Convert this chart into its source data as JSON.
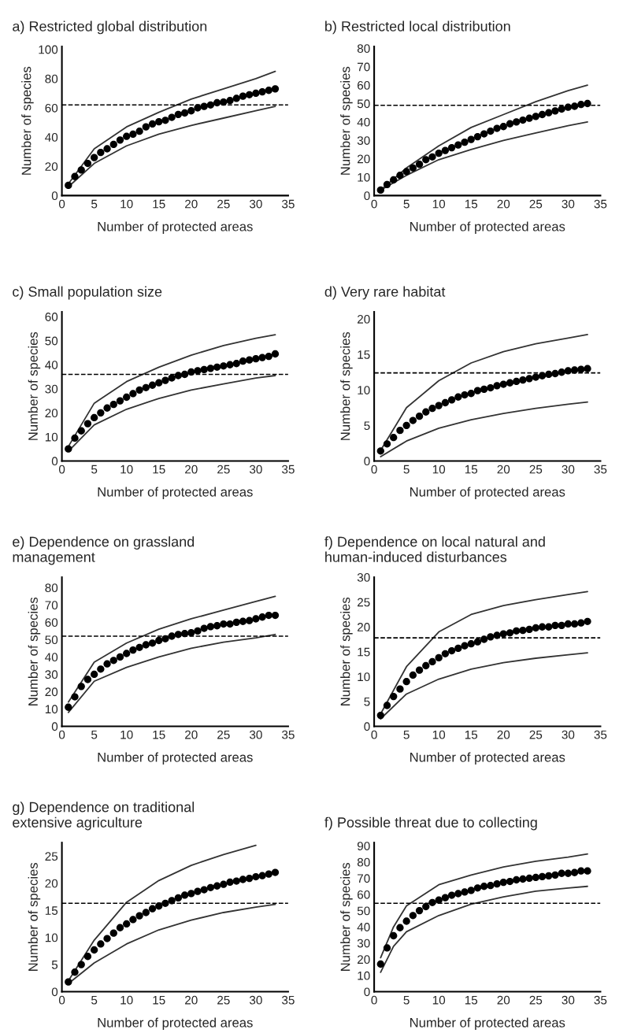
{
  "chart_data": [
    {
      "type": "line",
      "title": "a) Restricted global distribution",
      "xlabel": "Number of protected areas",
      "ylabel": "Number of species",
      "xlim": [
        0,
        35
      ],
      "xticks": [
        0,
        5,
        10,
        15,
        20,
        25,
        30,
        35
      ],
      "ylim": [
        0,
        102
      ],
      "yticks": [
        0,
        20,
        40,
        60,
        80,
        100
      ],
      "grid": false,
      "x": [
        1,
        2,
        3,
        4,
        5,
        6,
        7,
        8,
        9,
        10,
        11,
        12,
        13,
        14,
        15,
        16,
        17,
        18,
        19,
        20,
        21,
        22,
        23,
        24,
        25,
        26,
        27,
        28,
        29,
        30,
        31,
        32,
        33
      ],
      "ref_lines": [
        {
          "axis": "y",
          "value": 62,
          "color": "#000000",
          "line_style": "dashed"
        }
      ],
      "series": [
        {
          "type": "scatter",
          "color": "#000000",
          "marker": "circle",
          "values": [
            7,
            13,
            17.5,
            22,
            26,
            29.5,
            32,
            35,
            38,
            40.5,
            42,
            44,
            47,
            49,
            50.5,
            51.5,
            53.5,
            55.5,
            56.5,
            58,
            60,
            61,
            62,
            63.5,
            64,
            65,
            66.5,
            68,
            69,
            70,
            71,
            72,
            73
          ]
        },
        {
          "color": "#333333",
          "marker": "none",
          "x": [
            1,
            5,
            10,
            15,
            20,
            25,
            30,
            33
          ],
          "values": [
            8,
            32,
            47,
            57,
            66,
            73,
            80,
            85
          ]
        },
        {
          "color": "#333333",
          "marker": "none",
          "x": [
            1,
            5,
            10,
            15,
            20,
            25,
            30,
            33
          ],
          "values": [
            6,
            22,
            34,
            42,
            48,
            53,
            58,
            61
          ]
        }
      ]
    },
    {
      "type": "line",
      "title": "b) Restricted local distribution",
      "xlabel": "Number of protected areas",
      "ylabel": "Number of species",
      "xlim": [
        0,
        35
      ],
      "xticks": [
        0,
        5,
        10,
        15,
        20,
        25,
        30,
        35
      ],
      "ylim": [
        0,
        81
      ],
      "yticks": [
        0,
        10,
        20,
        30,
        40,
        50,
        60,
        70,
        80
      ],
      "grid": false,
      "x": [
        1,
        2,
        3,
        4,
        5,
        6,
        7,
        8,
        9,
        10,
        11,
        12,
        13,
        14,
        15,
        16,
        17,
        18,
        19,
        20,
        21,
        22,
        23,
        24,
        25,
        26,
        27,
        28,
        29,
        30,
        31,
        32,
        33
      ],
      "ref_lines": [
        {
          "axis": "y",
          "value": 49,
          "color": "#000000",
          "line_style": "dashed"
        }
      ],
      "series": [
        {
          "type": "scatter",
          "color": "#000000",
          "marker": "circle",
          "values": [
            3,
            6,
            8.5,
            11,
            13,
            15,
            17,
            19.5,
            21,
            23,
            24.5,
            26,
            27.5,
            29,
            30.5,
            32,
            33.5,
            35,
            36.5,
            37.5,
            39,
            40,
            41,
            42,
            43,
            44,
            45,
            46,
            47,
            48,
            48.5,
            49.5,
            50
          ]
        },
        {
          "color": "#333333",
          "marker": "none",
          "x": [
            1,
            5,
            10,
            15,
            20,
            25,
            30,
            33
          ],
          "values": [
            3,
            15,
            27,
            37,
            44,
            51,
            57,
            60
          ]
        },
        {
          "color": "#333333",
          "marker": "none",
          "x": [
            1,
            5,
            10,
            15,
            20,
            25,
            30,
            33
          ],
          "values": [
            3,
            11,
            19.5,
            25,
            30,
            34,
            38,
            40
          ]
        }
      ]
    },
    {
      "type": "line",
      "title": "c) Small population size",
      "xlabel": "Number of protected areas",
      "ylabel": "Number of species",
      "xlim": [
        0,
        35
      ],
      "xticks": [
        0,
        5,
        10,
        15,
        20,
        25,
        30,
        35
      ],
      "ylim": [
        0,
        62
      ],
      "yticks": [
        0,
        10,
        20,
        30,
        40,
        50,
        60
      ],
      "grid": false,
      "x": [
        1,
        2,
        3,
        4,
        5,
        6,
        7,
        8,
        9,
        10,
        11,
        12,
        13,
        14,
        15,
        16,
        17,
        18,
        19,
        20,
        21,
        22,
        23,
        24,
        25,
        26,
        27,
        28,
        29,
        30,
        31,
        32,
        33
      ],
      "ref_lines": [
        {
          "axis": "y",
          "value": 36,
          "color": "#000000",
          "line_style": "dashed"
        }
      ],
      "series": [
        {
          "type": "scatter",
          "color": "#000000",
          "marker": "circle",
          "values": [
            5,
            9.5,
            12.5,
            15.5,
            18,
            20,
            22,
            23.5,
            25,
            26.5,
            28,
            29.5,
            30.5,
            31.5,
            32.5,
            33.5,
            34.5,
            35.5,
            36,
            37,
            37.5,
            38,
            38.5,
            39,
            39.5,
            40,
            40.5,
            41.5,
            42,
            42.5,
            43,
            43.5,
            44.5
          ]
        },
        {
          "color": "#333333",
          "marker": "none",
          "x": [
            1,
            5,
            10,
            15,
            20,
            25,
            30,
            33
          ],
          "values": [
            6,
            24,
            33,
            39,
            44,
            48,
            51,
            52.5
          ]
        },
        {
          "color": "#333333",
          "marker": "none",
          "x": [
            1,
            5,
            10,
            15,
            20,
            25,
            30,
            33
          ],
          "values": [
            4,
            15,
            21.5,
            26,
            29.5,
            32,
            34.5,
            35.5
          ]
        }
      ]
    },
    {
      "type": "line",
      "title": "d) Very rare habitat",
      "xlabel": "Number of protected areas",
      "ylabel": "Number of species",
      "xlim": [
        0,
        35
      ],
      "xticks": [
        0,
        5,
        10,
        15,
        20,
        25,
        30,
        35
      ],
      "ylim": [
        0,
        21
      ],
      "yticks": [
        0,
        5,
        10,
        15,
        20
      ],
      "grid": false,
      "x": [
        1,
        2,
        3,
        4,
        5,
        6,
        7,
        8,
        9,
        10,
        11,
        12,
        13,
        14,
        15,
        16,
        17,
        18,
        19,
        20,
        21,
        22,
        23,
        24,
        25,
        26,
        27,
        28,
        29,
        30,
        31,
        32,
        33
      ],
      "ref_lines": [
        {
          "axis": "y",
          "value": 12.4,
          "color": "#000000",
          "line_style": "dashed"
        }
      ],
      "series": [
        {
          "type": "scatter",
          "color": "#000000",
          "marker": "circle",
          "values": [
            1.4,
            2.4,
            3.3,
            4.3,
            5,
            5.7,
            6.3,
            6.9,
            7.4,
            7.8,
            8.2,
            8.6,
            9,
            9.3,
            9.5,
            9.9,
            10.1,
            10.3,
            10.6,
            10.8,
            11,
            11.2,
            11.4,
            11.6,
            11.8,
            12,
            12.2,
            12.3,
            12.5,
            12.7,
            12.8,
            12.9,
            13
          ]
        },
        {
          "color": "#333333",
          "marker": "none",
          "x": [
            1,
            5,
            10,
            15,
            20,
            25,
            30,
            33
          ],
          "values": [
            1.5,
            7.5,
            11.3,
            13.8,
            15.4,
            16.5,
            17.3,
            17.8
          ]
        },
        {
          "color": "#333333",
          "marker": "none",
          "x": [
            1,
            5,
            10,
            15,
            20,
            25,
            30,
            33
          ],
          "values": [
            0.6,
            2.8,
            4.6,
            5.8,
            6.7,
            7.4,
            8,
            8.3
          ]
        }
      ]
    },
    {
      "type": "line",
      "title": "e) Dependence on grassland management",
      "xlabel": "Number of protected areas",
      "ylabel": "Number of species",
      "xlim": [
        0,
        35
      ],
      "xticks": [
        0,
        5,
        10,
        15,
        20,
        25,
        30,
        35
      ],
      "ylim": [
        0,
        86
      ],
      "yticks": [
        0,
        10,
        20,
        30,
        40,
        50,
        60,
        70,
        80
      ],
      "grid": false,
      "x": [
        1,
        2,
        3,
        4,
        5,
        6,
        7,
        8,
        9,
        10,
        11,
        12,
        13,
        14,
        15,
        16,
        17,
        18,
        19,
        20,
        21,
        22,
        23,
        24,
        25,
        26,
        27,
        28,
        29,
        30,
        31,
        32,
        33
      ],
      "ref_lines": [
        {
          "axis": "y",
          "value": 52,
          "color": "#000000",
          "line_style": "dashed"
        }
      ],
      "series": [
        {
          "type": "scatter",
          "color": "#000000",
          "marker": "circle",
          "values": [
            11,
            17,
            23,
            27,
            30,
            33,
            36,
            38,
            40,
            42,
            44,
            45.5,
            47,
            48,
            49.5,
            50.5,
            52,
            53,
            53.5,
            54,
            55,
            56.5,
            57.5,
            58,
            59,
            59,
            60,
            60.5,
            61,
            62,
            63,
            64,
            64
          ]
        },
        {
          "color": "#333333",
          "marker": "none",
          "x": [
            1,
            5,
            10,
            15,
            20,
            25,
            30,
            33
          ],
          "values": [
            14,
            37,
            48,
            56,
            62,
            67,
            72,
            75
          ]
        },
        {
          "color": "#333333",
          "marker": "none",
          "x": [
            1,
            5,
            10,
            15,
            20,
            25,
            30,
            33
          ],
          "values": [
            8,
            26,
            34,
            40,
            45,
            48.5,
            51,
            53
          ]
        }
      ]
    },
    {
      "type": "line",
      "title": "f) Dependence on local natural and human-induced disturbances",
      "xlabel": "Number of protected areas",
      "ylabel": "Number of species",
      "xlim": [
        0,
        35
      ],
      "xticks": [
        0,
        5,
        10,
        15,
        20,
        25,
        30,
        35
      ],
      "ylim": [
        0,
        30
      ],
      "yticks": [
        0,
        5,
        10,
        15,
        20,
        25,
        30
      ],
      "grid": false,
      "x": [
        1,
        2,
        3,
        4,
        5,
        6,
        7,
        8,
        9,
        10,
        11,
        12,
        13,
        14,
        15,
        16,
        17,
        18,
        19,
        20,
        21,
        22,
        23,
        24,
        25,
        26,
        27,
        28,
        29,
        30,
        31,
        32,
        33
      ],
      "ref_lines": [
        {
          "axis": "y",
          "value": 17.8,
          "color": "#000000",
          "line_style": "dashed"
        }
      ],
      "series": [
        {
          "type": "scatter",
          "color": "#000000",
          "marker": "circle",
          "values": [
            2.2,
            4.2,
            6,
            7.5,
            9,
            10.3,
            11.3,
            12.2,
            13,
            13.8,
            14.6,
            15.2,
            15.7,
            16.2,
            16.6,
            17,
            17.5,
            18,
            18.3,
            18.6,
            18.8,
            19.2,
            19.3,
            19.5,
            19.8,
            20,
            20,
            20.3,
            20.3,
            20.6,
            20.6,
            20.8,
            21.1
          ]
        },
        {
          "color": "#333333",
          "marker": "none",
          "x": [
            1,
            5,
            10,
            15,
            20,
            25,
            30,
            33
          ],
          "values": [
            2.5,
            12,
            19,
            22.5,
            24.3,
            25.5,
            26.5,
            27.1
          ]
        },
        {
          "color": "#333333",
          "marker": "none",
          "x": [
            1,
            5,
            10,
            15,
            20,
            25,
            30,
            33
          ],
          "values": [
            1.5,
            6.5,
            9.5,
            11.5,
            12.8,
            13.7,
            14.4,
            14.8
          ]
        }
      ]
    },
    {
      "type": "line",
      "title": "g) Dependence on traditional extensive agriculture",
      "xlabel": "Number of protected areas",
      "ylabel": "Number of species",
      "xlim": [
        0,
        35
      ],
      "xticks": [
        0,
        5,
        10,
        15,
        20,
        25,
        30,
        35
      ],
      "ylim": [
        0,
        27.5
      ],
      "yticks": [
        0,
        5,
        10,
        15,
        20,
        25
      ],
      "grid": false,
      "x": [
        1,
        2,
        3,
        4,
        5,
        6,
        7,
        8,
        9,
        10,
        11,
        12,
        13,
        14,
        15,
        16,
        17,
        18,
        19,
        20,
        21,
        22,
        23,
        24,
        25,
        26,
        27,
        28,
        29,
        30,
        31,
        32,
        33
      ],
      "ref_lines": [
        {
          "axis": "y",
          "value": 16.3,
          "color": "#000000",
          "line_style": "dashed"
        }
      ],
      "series": [
        {
          "type": "scatter",
          "color": "#000000",
          "marker": "circle",
          "values": [
            1.8,
            3.6,
            5,
            6.5,
            7.7,
            8.8,
            9.8,
            10.8,
            11.8,
            12.5,
            13.3,
            14,
            14.6,
            15.3,
            15.8,
            16.3,
            16.8,
            17.3,
            17.8,
            18.1,
            18.5,
            18.8,
            19.2,
            19.5,
            19.8,
            20.2,
            20.4,
            20.7,
            20.9,
            21.2,
            21.4,
            21.7,
            22
          ]
        },
        {
          "color": "#333333",
          "marker": "none",
          "x": [
            1,
            5,
            10,
            15,
            20,
            25,
            30
          ],
          "values": [
            2,
            9.5,
            16.5,
            20.5,
            23.3,
            25.3,
            27
          ]
        },
        {
          "color": "#333333",
          "marker": "none",
          "x": [
            1,
            5,
            10,
            15,
            20,
            25,
            30,
            33
          ],
          "values": [
            1.5,
            5.3,
            8.8,
            11.4,
            13.2,
            14.6,
            15.6,
            16.1
          ]
        }
      ]
    },
    {
      "type": "line",
      "title": "f) Possible threat due to collecting",
      "xlabel": "Number of protected areas",
      "ylabel": "Number of species",
      "xlim": [
        0,
        35
      ],
      "xticks": [
        0,
        5,
        10,
        15,
        20,
        25,
        30,
        35
      ],
      "ylim": [
        0,
        92
      ],
      "yticks": [
        0,
        10,
        20,
        30,
        40,
        50,
        60,
        70,
        80,
        90
      ],
      "grid": false,
      "x": [
        1,
        2,
        3,
        4,
        5,
        6,
        7,
        8,
        9,
        10,
        11,
        12,
        13,
        14,
        15,
        16,
        17,
        18,
        19,
        20,
        21,
        22,
        23,
        24,
        25,
        26,
        27,
        28,
        29,
        30,
        31,
        32,
        33
      ],
      "ref_lines": [
        {
          "axis": "y",
          "value": 54.5,
          "color": "#000000",
          "line_style": "dashed"
        }
      ],
      "series": [
        {
          "type": "scatter",
          "color": "#000000",
          "marker": "circle",
          "values": [
            17,
            27,
            34.5,
            39.5,
            43.5,
            47,
            50,
            52.5,
            55,
            56.5,
            58,
            59.5,
            60.5,
            61.5,
            62.5,
            64,
            65,
            65.5,
            66.5,
            67.5,
            68,
            69,
            69.5,
            70,
            70.5,
            71,
            71.5,
            72,
            73,
            73,
            73.5,
            74.5,
            74.5
          ]
        },
        {
          "color": "#333333",
          "marker": "none",
          "x": [
            1,
            3,
            5,
            10,
            15,
            20,
            25,
            30,
            33
          ],
          "values": [
            21,
            40,
            53,
            66,
            72,
            77,
            80.5,
            83,
            85
          ]
        },
        {
          "color": "#333333",
          "marker": "none",
          "x": [
            1,
            3,
            5,
            10,
            15,
            20,
            25,
            30,
            33
          ],
          "values": [
            12,
            28,
            37,
            47,
            54,
            58.5,
            62,
            64,
            65
          ]
        }
      ]
    }
  ]
}
